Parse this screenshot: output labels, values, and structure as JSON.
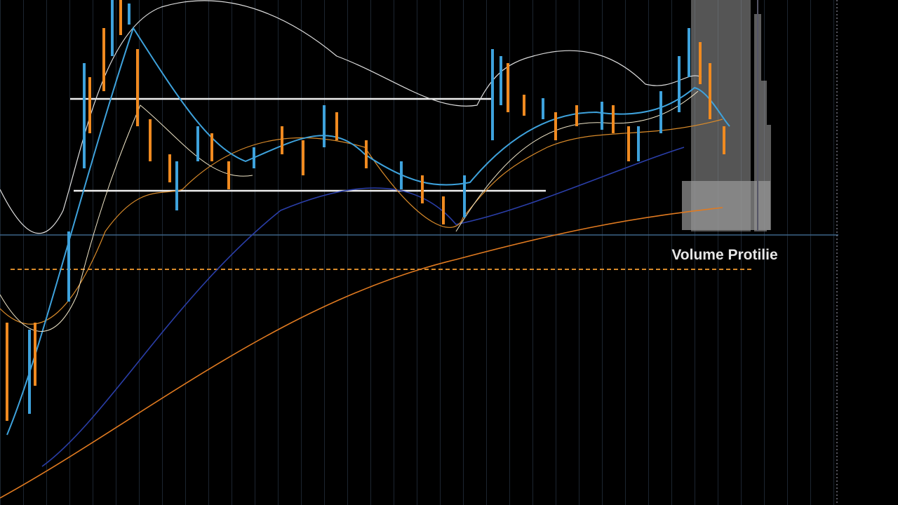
{
  "label": "Volume Protilie"
}
